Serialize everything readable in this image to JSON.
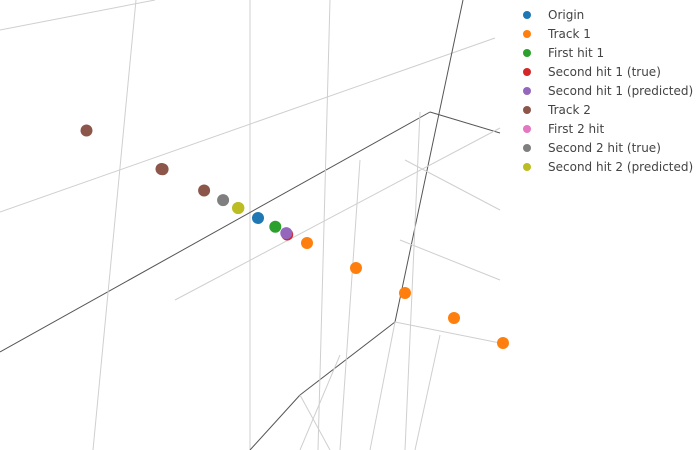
{
  "chart_data": {
    "type": "scatter3d",
    "grid": true,
    "legend_placement": "top-right",
    "series": [
      {
        "name": "Origin",
        "color": "#1f77b4",
        "points": [
          [
            0.0,
            0.0,
            0.0
          ]
        ]
      },
      {
        "name": "Track 1",
        "color": "#ff7f0e",
        "points": [
          [
            1.0,
            1.0,
            -0.5
          ],
          [
            2.0,
            2.0,
            -1.0
          ],
          [
            3.0,
            3.0,
            -1.5
          ],
          [
            4.0,
            4.0,
            -2.0
          ],
          [
            5.0,
            5.0,
            -2.5
          ]
        ]
      },
      {
        "name": "First hit 1",
        "color": "#2ca02c",
        "points": [
          [
            0.35,
            0.35,
            -0.18
          ]
        ]
      },
      {
        "name": "Second hit 1 (true)",
        "color": "#d62728",
        "points": [
          [
            0.6,
            0.7,
            -0.25
          ]
        ]
      },
      {
        "name": "Second hit 1 (predicted)",
        "color": "#9467bd",
        "points": [
          [
            0.58,
            0.62,
            -0.27
          ]
        ]
      },
      {
        "name": "Track 2",
        "color": "#8c564b",
        "points": [
          [
            -1.1,
            -1.1,
            0.55
          ],
          [
            -1.95,
            -1.95,
            0.97
          ],
          [
            -1.97,
            -1.95,
            0.99
          ],
          [
            -3.5,
            -3.5,
            1.75
          ]
        ]
      },
      {
        "name": "First 2 hit",
        "color": "#e377c2",
        "points": []
      },
      {
        "name": "Second 2 hit (true)",
        "color": "#7f7f7f",
        "points": [
          [
            -0.7,
            -0.75,
            0.36
          ]
        ]
      },
      {
        "name": "Second hit 2 (predicted)",
        "color": "#bcbd22",
        "points": [
          [
            -0.4,
            -0.4,
            0.2
          ],
          [
            -0.41,
            -0.39,
            0.21
          ]
        ]
      }
    ]
  }
}
